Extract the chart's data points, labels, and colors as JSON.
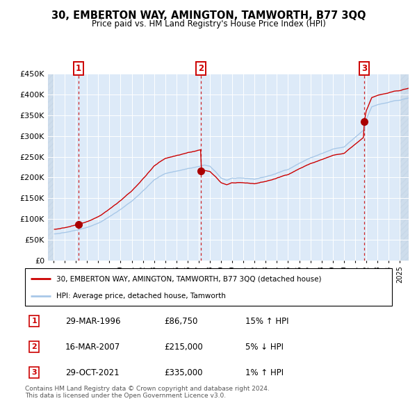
{
  "title": "30, EMBERTON WAY, AMINGTON, TAMWORTH, B77 3QQ",
  "subtitle": "Price paid vs. HM Land Registry's House Price Index (HPI)",
  "ylim": [
    0,
    450000
  ],
  "yticks": [
    0,
    50000,
    100000,
    150000,
    200000,
    250000,
    300000,
    350000,
    400000,
    450000
  ],
  "ytick_labels": [
    "£0",
    "£50K",
    "£100K",
    "£150K",
    "£200K",
    "£250K",
    "£300K",
    "£350K",
    "£400K",
    "£450K"
  ],
  "sales": [
    {
      "date": 1996.21,
      "price": 86750,
      "label": "1"
    },
    {
      "date": 2007.21,
      "price": 215000,
      "label": "2"
    },
    {
      "date": 2021.83,
      "price": 335000,
      "label": "3"
    }
  ],
  "hpi_line_color": "#a8c8e8",
  "sale_line_color": "#cc0000",
  "sale_dot_color": "#aa0000",
  "vline_color": "#cc0000",
  "background_color": "#ddeaf8",
  "legend_line1": "30, EMBERTON WAY, AMINGTON, TAMWORTH, B77 3QQ (detached house)",
  "legend_line2": "HPI: Average price, detached house, Tamworth",
  "table_rows": [
    {
      "num": "1",
      "date": "29-MAR-1996",
      "price": "£86,750",
      "hpi": "15% ↑ HPI"
    },
    {
      "num": "2",
      "date": "16-MAR-2007",
      "price": "£215,000",
      "hpi": "5% ↓ HPI"
    },
    {
      "num": "3",
      "date": "29-OCT-2021",
      "price": "£335,000",
      "hpi": "1% ↑ HPI"
    }
  ],
  "footer": "Contains HM Land Registry data © Crown copyright and database right 2024.\nThis data is licensed under the Open Government Licence v3.0.",
  "xlim_left": 1993.5,
  "xlim_right": 2025.8,
  "hpi_seed": 42
}
